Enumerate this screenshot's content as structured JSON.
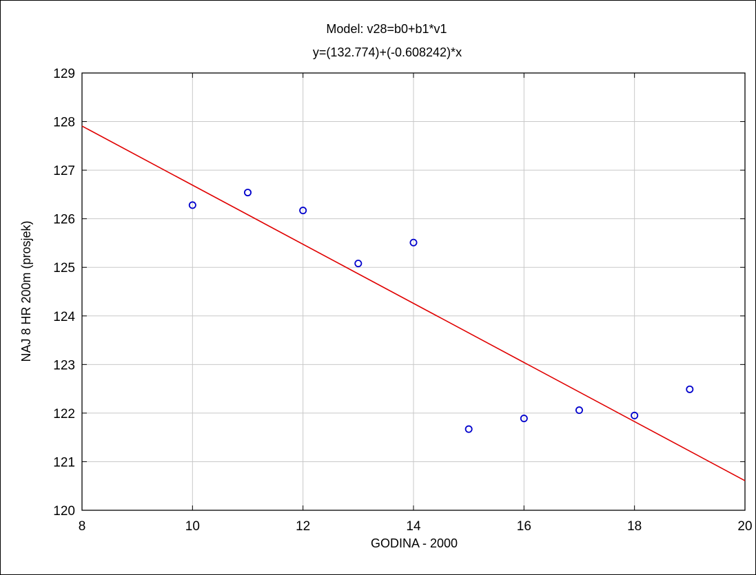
{
  "chart_data": {
    "type": "scatter",
    "title": "Model:  v28=b0+b1*v1",
    "subtitle": "y=(132.774)+(-0.608242)*x",
    "xlabel": "GODINA - 2000",
    "ylabel": "NAJ 8 HR 200m (prosjek)",
    "xlim": [
      8,
      20
    ],
    "ylim": [
      120,
      129
    ],
    "xticks": [
      "8",
      "10",
      "12",
      "14",
      "16",
      "18",
      "20"
    ],
    "yticks": [
      "120",
      "121",
      "122",
      "123",
      "124",
      "125",
      "126",
      "127",
      "128",
      "129"
    ],
    "grid": true,
    "points": {
      "x": [
        10,
        11,
        12,
        13,
        14,
        15,
        16,
        17,
        18,
        19
      ],
      "y": [
        126.28,
        126.54,
        126.17,
        125.08,
        125.51,
        121.67,
        121.89,
        122.06,
        121.95,
        122.49
      ],
      "color": "#0000cc"
    },
    "fit_line": {
      "intercept": 132.774,
      "slope": -0.608242,
      "color": "#e00000"
    },
    "grid_color": "#c8c8c8"
  }
}
